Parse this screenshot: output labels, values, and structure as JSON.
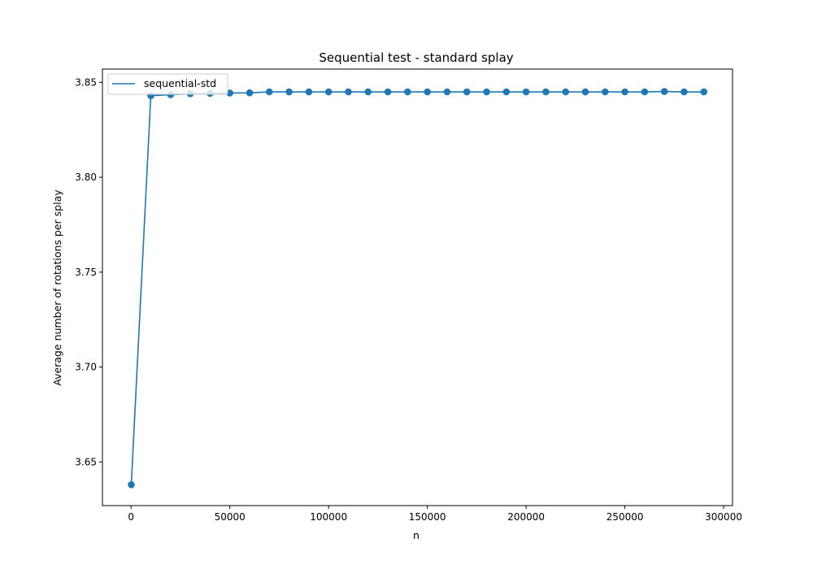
{
  "chart_data": {
    "type": "line",
    "title": "Sequential test - standard splay",
    "xlabel": "n",
    "ylabel": "Average number of rotations per splay",
    "xlim": [
      -14500,
      304500
    ],
    "ylim": [
      3.627,
      3.857
    ],
    "xticks": [
      0,
      50000,
      100000,
      150000,
      200000,
      250000,
      300000
    ],
    "xtick_labels": [
      "0",
      "50000",
      "100000",
      "150000",
      "200000",
      "250000",
      "300000"
    ],
    "yticks": [
      3.65,
      3.7,
      3.75,
      3.8,
      3.85
    ],
    "ytick_labels": [
      "3.65",
      "3.70",
      "3.75",
      "3.80",
      "3.85"
    ],
    "grid": false,
    "legend_position": "upper-left",
    "markers": true,
    "color": "#1f77b4",
    "series": [
      {
        "name": "sequential-std",
        "x": [
          100,
          10000,
          20000,
          30000,
          40000,
          50000,
          60000,
          70000,
          80000,
          90000,
          100000,
          110000,
          120000,
          130000,
          140000,
          150000,
          160000,
          170000,
          180000,
          190000,
          200000,
          210000,
          220000,
          230000,
          240000,
          250000,
          260000,
          270000,
          280000,
          290000
        ],
        "y": [
          3.638,
          3.843,
          3.8435,
          3.844,
          3.8442,
          3.8444,
          3.8445,
          3.845,
          3.845,
          3.845,
          3.845,
          3.845,
          3.845,
          3.845,
          3.845,
          3.845,
          3.845,
          3.845,
          3.845,
          3.845,
          3.845,
          3.845,
          3.845,
          3.845,
          3.845,
          3.845,
          3.845,
          3.8452,
          3.845,
          3.845
        ]
      }
    ]
  }
}
